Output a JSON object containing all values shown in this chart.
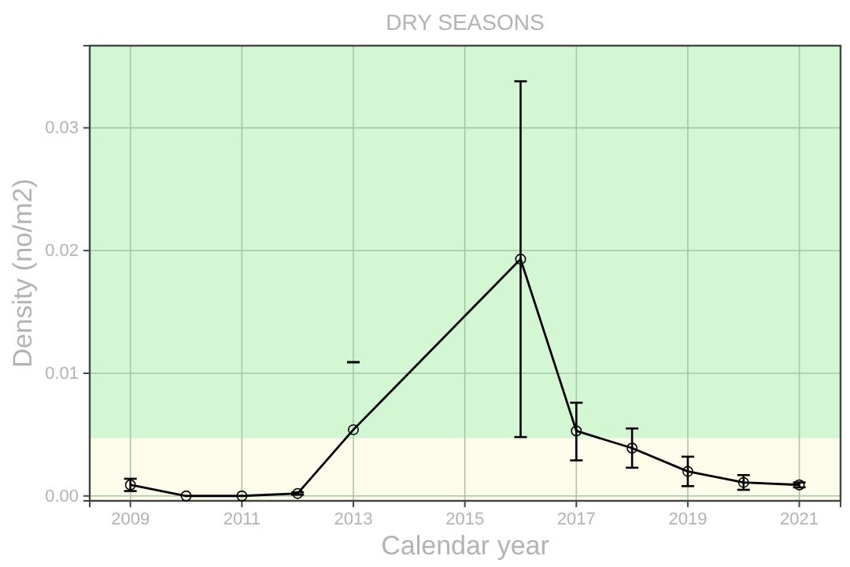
{
  "chart_data": {
    "type": "line",
    "title": "DRY SEASONS",
    "xlabel": "Calendar year",
    "ylabel": "Density (no/m2)",
    "x": [
      2009,
      2010,
      2011,
      2012,
      2013,
      2016,
      2017,
      2018,
      2019,
      2020,
      2021
    ],
    "series": [
      {
        "color": "#000000",
        "values": [
          0.0009,
          0,
          0,
          0.0002,
          0.0054,
          0.0193,
          0.0053,
          0.0039,
          0.002,
          0.0011,
          0.0009
        ],
        "errors": [
          [
            0.0004,
            0.0014
          ],
          null,
          null,
          [
            0.0001,
            0.0003
          ],
          [
            0.0109,
            0.0109
          ],
          [
            0.0048,
            0.0338
          ],
          [
            0.0029,
            0.0076
          ],
          [
            0.0023,
            0.0055
          ],
          [
            0.0008,
            0.0032
          ],
          [
            0.0005,
            0.0017
          ],
          [
            0.0007,
            0.0011
          ]
        ]
      }
    ],
    "xlim": [
      2008.27,
      2021.74
    ],
    "xticks": [
      2009,
      2011,
      2013,
      2015,
      2017,
      2019,
      2021
    ],
    "ylim": [
      -0.0004,
      0.0367
    ],
    "yticks": [
      {
        "value": 0,
        "label": "0.00"
      },
      {
        "value": 0.01,
        "label": "0.01"
      },
      {
        "value": 0.02,
        "label": "0.02"
      },
      {
        "value": 0.03,
        "label": "0.03"
      }
    ],
    "bands": [
      {
        "axis": "y",
        "from": -0.0004,
        "to": 0.0047,
        "color": "#fdfbea"
      },
      {
        "axis": "y",
        "from": 0.0047,
        "to": 0.0367,
        "color": "#d3f7d3"
      }
    ],
    "grid": true,
    "marker": "circle",
    "line_style": "solid"
  }
}
